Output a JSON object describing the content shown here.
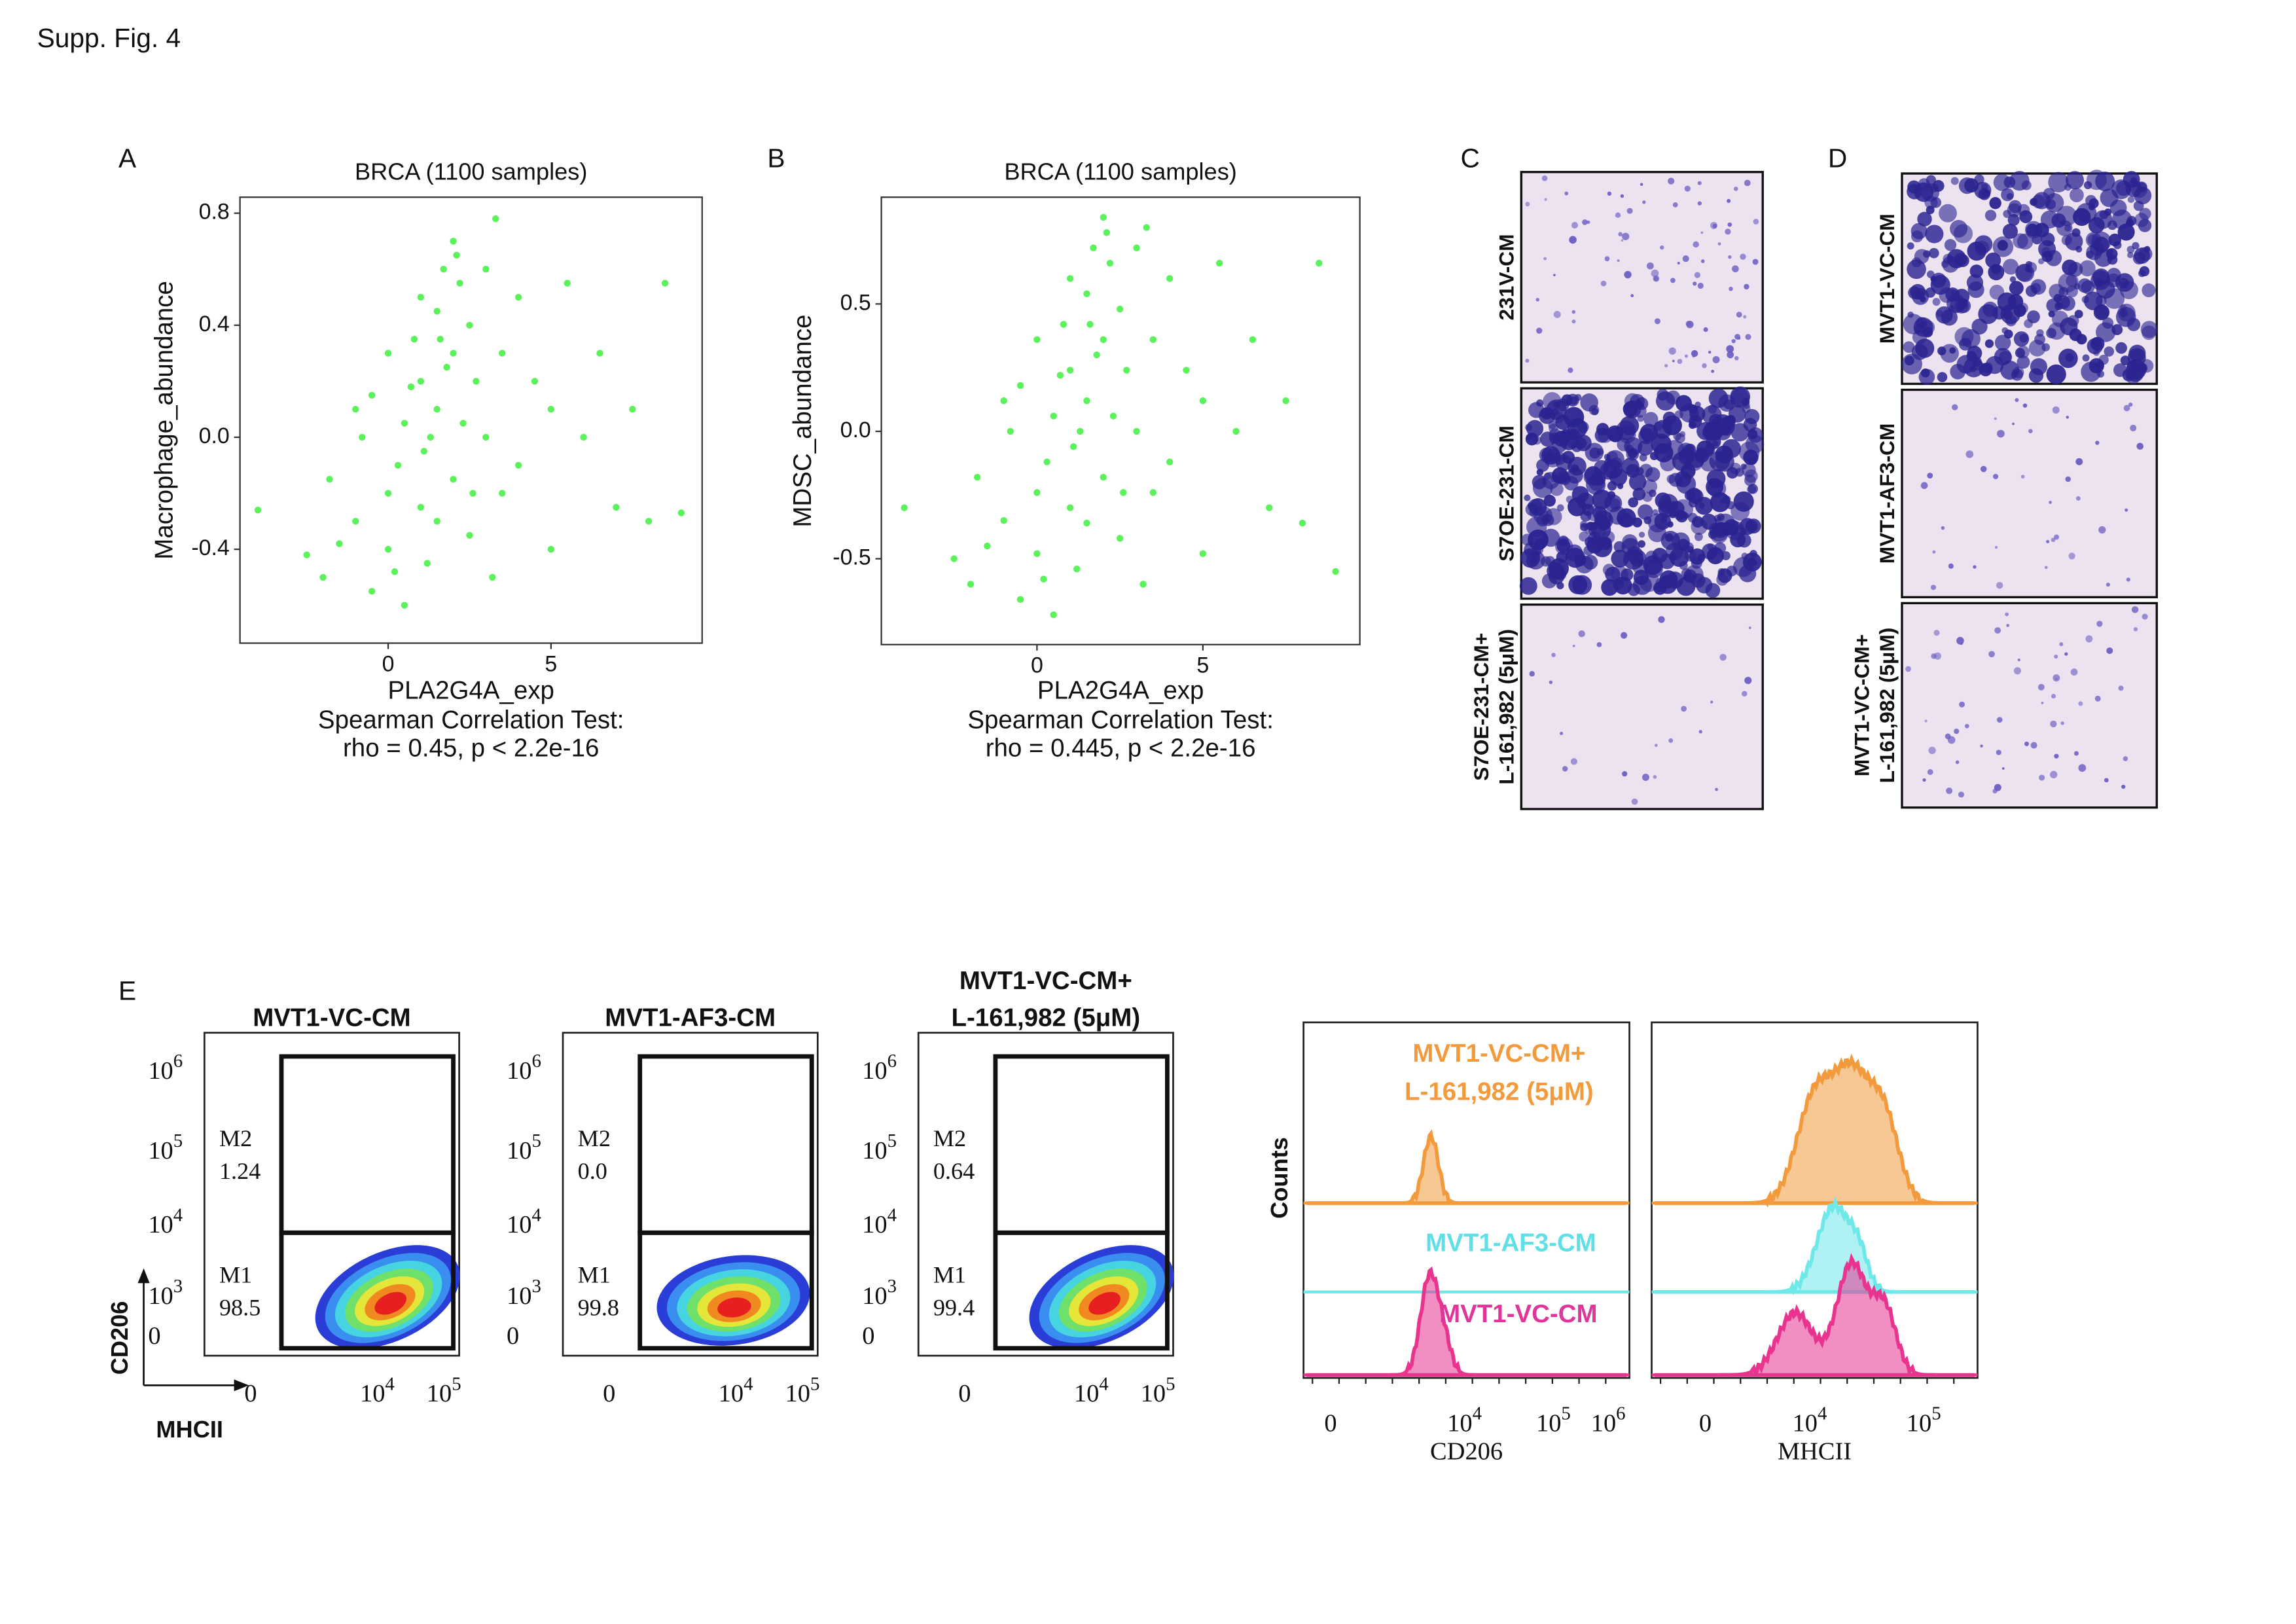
{
  "header": {
    "title": "Supp. Fig. 4"
  },
  "chart_data": [
    {
      "type": "scatter",
      "panel_label": "A",
      "title": "BRCA (1100 samples)",
      "x_label": "PLA2G4A_exp",
      "y_label": "Macrophage_abundance",
      "annotation": [
        "Spearman Correlation Test:",
        "rho = 0.45, p < 2.2e-16"
      ],
      "x": [
        -4,
        -2.5,
        -2,
        -1.5,
        -1,
        -1,
        -0.5,
        -0.5,
        0,
        0,
        0,
        0.3,
        0.5,
        0.5,
        0.8,
        1,
        1,
        1,
        1.2,
        1.3,
        1.5,
        1.5,
        1.5,
        1.7,
        1.8,
        2,
        2,
        2,
        2.2,
        2.3,
        2.5,
        2.5,
        2.7,
        3,
        3,
        3.2,
        3.5,
        3.5,
        4,
        4,
        4.5,
        5,
        5,
        5.5,
        6,
        6.5,
        7,
        7.5,
        8,
        8.5,
        9,
        -1.8,
        -0.8,
        0.2,
        0.7,
        1.1,
        1.6,
        2.1,
        2.6,
        3.3
      ],
      "y": [
        -0.26,
        -0.42,
        -0.5,
        -0.38,
        -0.3,
        0.1,
        -0.55,
        0.15,
        -0.2,
        -0.4,
        0.3,
        -0.1,
        0.05,
        -0.6,
        0.35,
        -0.25,
        0.2,
        0.5,
        -0.45,
        0.0,
        0.1,
        0.45,
        -0.3,
        0.6,
        0.25,
        0.3,
        -0.15,
        0.7,
        0.55,
        0.05,
        0.4,
        -0.35,
        0.2,
        0.0,
        0.6,
        -0.5,
        0.3,
        -0.2,
        0.5,
        -0.1,
        0.2,
        0.1,
        -0.4,
        0.55,
        0.0,
        0.3,
        -0.25,
        0.1,
        -0.3,
        0.55,
        -0.27,
        -0.15,
        0.0,
        -0.48,
        0.18,
        -0.05,
        0.35,
        0.65,
        -0.2,
        0.78
      ],
      "color": "#5cf25c",
      "xlim": [
        -4.55,
        9.64
      ],
      "ylim": [
        -0.735,
        0.857
      ],
      "xticks": [
        0,
        5
      ],
      "yticks": [
        -0.4,
        {
          "value": 0,
          "label": "0.0"
        },
        0.4,
        0.8
      ]
    },
    {
      "type": "scatter",
      "panel_label": "B",
      "title": "BRCA (1100 samples)",
      "x_label": "PLA2G4A_exp",
      "y_label": "MDSC_abundance",
      "annotation": [
        "Spearman Correlation Test:",
        "rho = 0.445, p < 2.2e-16"
      ],
      "x": [
        -4,
        -2.5,
        -2,
        -1.5,
        -1,
        -1,
        -0.5,
        -0.5,
        0,
        0,
        0,
        0.3,
        0.5,
        0.5,
        0.8,
        1,
        1,
        1,
        1.2,
        1.3,
        1.5,
        1.5,
        1.5,
        1.7,
        1.8,
        2,
        2,
        2,
        2.2,
        2.3,
        2.5,
        2.5,
        2.7,
        3,
        3,
        3.2,
        3.5,
        3.5,
        4,
        4,
        4.5,
        5,
        5,
        5.5,
        6,
        6.5,
        7,
        7.5,
        8,
        8.5,
        9,
        -1.8,
        -0.8,
        0.2,
        0.7,
        1.1,
        1.6,
        2.1,
        2.6,
        3.3
      ],
      "y": [
        -0.3,
        -0.5,
        -0.6,
        -0.45,
        -0.35,
        0.12,
        -0.66,
        0.18,
        -0.24,
        -0.48,
        0.36,
        -0.12,
        0.06,
        -0.72,
        0.42,
        -0.3,
        0.24,
        0.6,
        -0.54,
        0.0,
        0.12,
        0.54,
        -0.36,
        0.72,
        0.3,
        0.36,
        -0.18,
        0.84,
        0.66,
        0.06,
        0.48,
        -0.42,
        0.24,
        0.0,
        0.72,
        -0.6,
        0.36,
        -0.24,
        0.6,
        -0.12,
        0.24,
        0.12,
        -0.48,
        0.66,
        0.0,
        0.36,
        -0.3,
        0.12,
        -0.36,
        0.66,
        -0.55,
        -0.18,
        0.0,
        -0.58,
        0.22,
        -0.06,
        0.42,
        0.78,
        -0.24,
        0.8
      ],
      "color": "#5cf25c",
      "xlim": [
        -4.69,
        9.73
      ],
      "ylim": [
        -0.837,
        0.919
      ],
      "xticks": [
        0,
        5
      ],
      "yticks": [
        -0.5,
        {
          "value": 0,
          "label": "0.0"
        },
        0.5
      ]
    }
  ],
  "panel_c": {
    "label": "C",
    "rows": [
      [
        "231V-CM"
      ],
      [
        "S7OE-231-CM"
      ],
      [
        "S7OE-231-CM+",
        "L-161,982 (5μM)"
      ]
    ]
  },
  "panel_d": {
    "label": "D",
    "rows": [
      [
        "MVT1-VC-CM"
      ],
      [
        "MVT1-AF3-CM"
      ],
      [
        "MVT1-VC-CM+",
        "L-161,982 (5μM)"
      ]
    ]
  },
  "panel_e": {
    "label": "E",
    "y_axis": "CD206",
    "x_axis": "MHCII",
    "dot_plots": [
      {
        "title": [
          "MVT1-VC-CM"
        ],
        "gates": [
          {
            "name": "M2",
            "value": "1.24"
          },
          {
            "name": "M1",
            "value": "98.5"
          }
        ]
      },
      {
        "title": [
          "MVT1-AF3-CM"
        ],
        "gates": [
          {
            "name": "M2",
            "value": "0.0"
          },
          {
            "name": "M1",
            "value": "99.8"
          }
        ]
      },
      {
        "title": [
          "MVT1-VC-CM+",
          "L-161,982 (5μM)"
        ],
        "gates": [
          {
            "name": "M2",
            "value": "0.64"
          },
          {
            "name": "M1",
            "value": "99.4"
          }
        ]
      }
    ],
    "y_ticks": [
      [
        "10",
        "6"
      ],
      [
        "10",
        "5"
      ],
      [
        "10",
        "4"
      ],
      [
        "10",
        "3"
      ],
      [
        "0"
      ]
    ],
    "x_ticks": [
      [
        "0"
      ],
      [
        "10",
        "4"
      ],
      [
        "10",
        "5"
      ]
    ],
    "histograms": {
      "y_label": "Counts",
      "legend": [
        [
          "MVT1-VC-CM+",
          "L-161,982 (5μM)"
        ],
        [
          "MVT1-AF3-CM"
        ],
        [
          "MVT1-VC-CM"
        ]
      ],
      "panels": [
        {
          "x_label": "CD206",
          "x_ticks": [
            [
              "0"
            ],
            [
              "10",
              "4"
            ],
            [
              "10",
              "5"
            ],
            [
              "10",
              "6"
            ]
          ]
        },
        {
          "x_label": "MHCII",
          "x_ticks": [
            [
              "0"
            ],
            [
              "10",
              "4"
            ],
            [
              "10",
              "5"
            ]
          ]
        }
      ]
    }
  }
}
